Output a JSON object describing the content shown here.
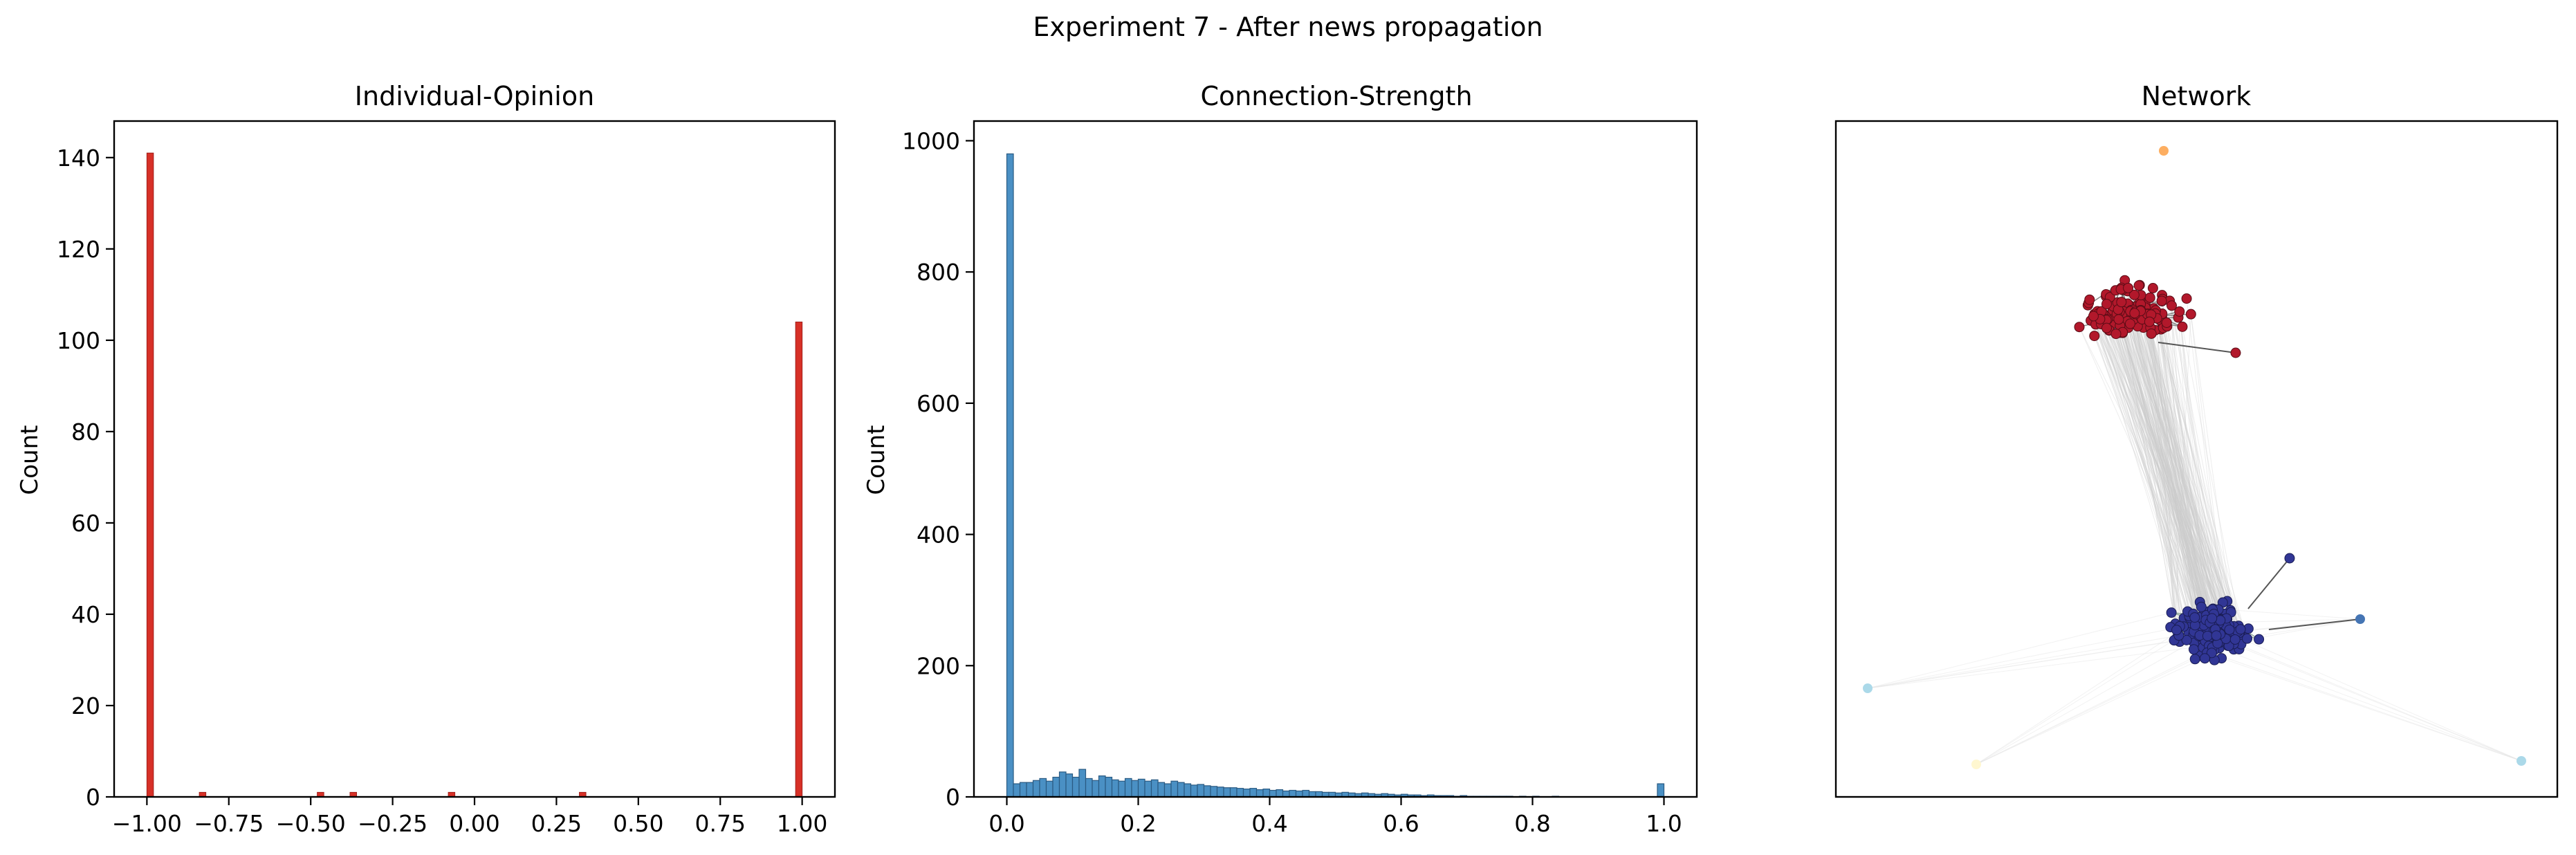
{
  "suptitle": "Experiment 7 - After news propagation",
  "chart_data": [
    {
      "type": "bar",
      "title": "Individual-Opinion",
      "xlabel": "",
      "ylabel": "Count",
      "xlim": [
        -1.1,
        1.1
      ],
      "ylim": [
        0,
        148
      ],
      "color": "#d73027",
      "bar_width": 0.02,
      "x": [
        -0.99,
        -0.83,
        -0.47,
        -0.37,
        -0.07,
        0.33,
        0.99
      ],
      "values": [
        141,
        1,
        1,
        1,
        1,
        1,
        104
      ],
      "x_ticks": [
        "-1.00",
        "-0.75",
        "-0.50",
        "-0.25",
        "0.00",
        "0.25",
        "0.50",
        "0.75",
        "1.00"
      ],
      "y_ticks": [
        "0",
        "20",
        "40",
        "60",
        "80",
        "100",
        "120",
        "140"
      ]
    },
    {
      "type": "bar",
      "title": "Connection-Strength",
      "xlabel": "",
      "ylabel": "Count",
      "xlim": [
        -0.05,
        1.05
      ],
      "ylim": [
        0,
        1030
      ],
      "color": "#4a90c4",
      "bin_width": 0.01,
      "bin_start": 0.0,
      "values": [
        980,
        20,
        22,
        22,
        25,
        28,
        24,
        30,
        38,
        35,
        30,
        42,
        28,
        25,
        32,
        30,
        26,
        24,
        28,
        25,
        27,
        24,
        26,
        22,
        20,
        24,
        22,
        20,
        18,
        19,
        17,
        16,
        15,
        14,
        14,
        13,
        12,
        13,
        11,
        12,
        10,
        11,
        9,
        10,
        9,
        10,
        8,
        8,
        7,
        7,
        6,
        7,
        6,
        5,
        6,
        5,
        4,
        5,
        4,
        3,
        4,
        3,
        3,
        2,
        3,
        2,
        2,
        2,
        1,
        2,
        1,
        1,
        1,
        1,
        1,
        1,
        1,
        0,
        1,
        0,
        1,
        0,
        0,
        1,
        0,
        0,
        0,
        0,
        0,
        0,
        0,
        0,
        0,
        0,
        0,
        0,
        0,
        0,
        0,
        20
      ],
      "x_ticks": [
        "0.0",
        "0.2",
        "0.4",
        "0.6",
        "0.8",
        "1.0"
      ],
      "y_ticks": [
        "0",
        "200",
        "400",
        "600",
        "800",
        "1000"
      ]
    },
    {
      "type": "network",
      "title": "Network",
      "colors": {
        "red_cluster": "#b2182b",
        "blue_cluster": "#313695",
        "orange_node": "#fdae61",
        "teal_node": "#4575b4",
        "light_blue_node": "#abd9e9",
        "pale_node": "#fff7d0",
        "edge": "#cccccc"
      }
    }
  ]
}
